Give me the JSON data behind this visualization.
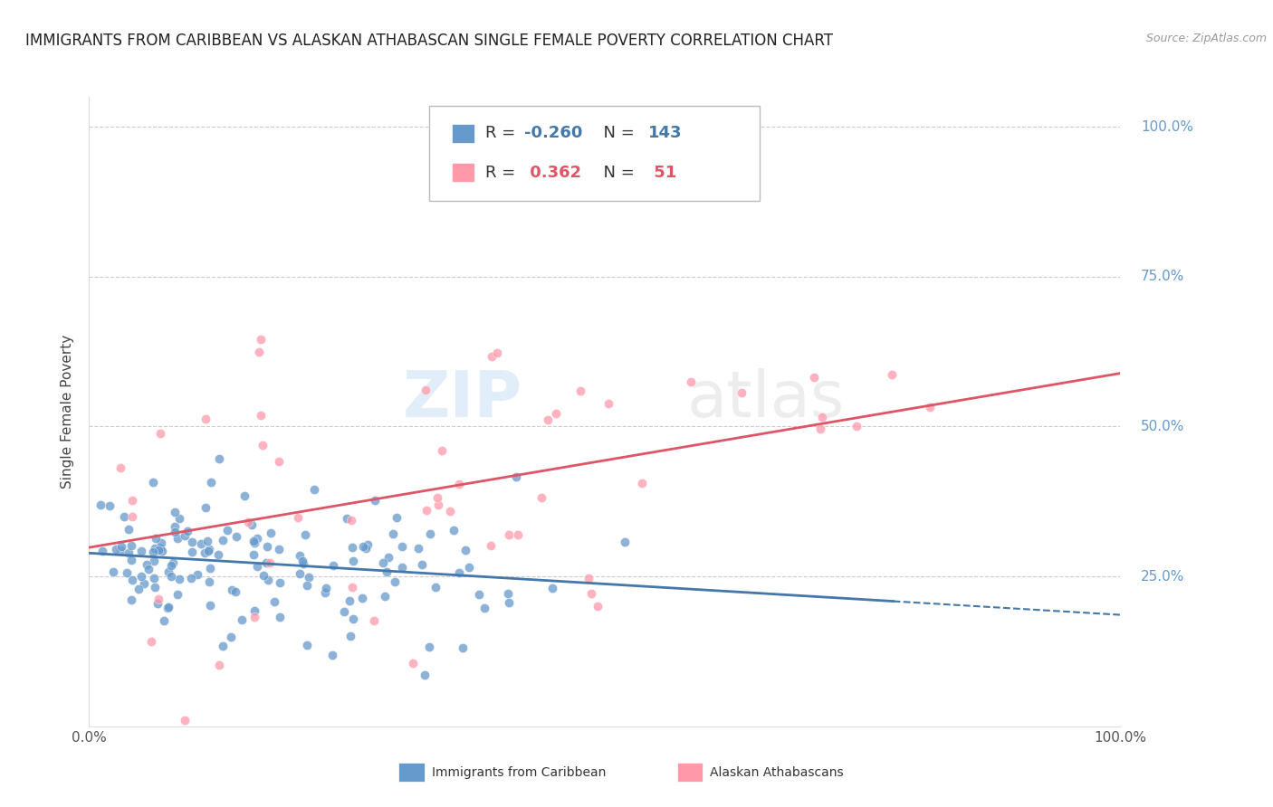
{
  "title": "IMMIGRANTS FROM CARIBBEAN VS ALASKAN ATHABASCAN SINGLE FEMALE POVERTY CORRELATION CHART",
  "source": "Source: ZipAtlas.com",
  "ylabel": "Single Female Poverty",
  "blue_color": "#6699cc",
  "blue_line_color": "#4477aa",
  "pink_color": "#ff99aa",
  "pink_line_color": "#dd5566",
  "blue_R": -0.26,
  "blue_N": 143,
  "pink_R": 0.362,
  "pink_N": 51,
  "watermark_zip": "ZIP",
  "watermark_atlas": "atlas",
  "background_color": "#ffffff",
  "grid_color": "#cccccc",
  "right_label_color": "#6699cc",
  "title_fontsize": 12,
  "axis_fontsize": 11,
  "tick_fontsize": 11,
  "legend_fontsize": 13,
  "y_ticks": [
    0.25,
    0.5,
    0.75,
    1.0
  ],
  "y_tick_labels": [
    "25.0%",
    "50.0%",
    "75.0%",
    "100.0%"
  ],
  "x_ticks": [
    0.0,
    1.0
  ],
  "x_tick_labels": [
    "0.0%",
    "100.0%"
  ],
  "ylim": [
    0.0,
    1.05
  ],
  "xlim": [
    0.0,
    1.0
  ]
}
